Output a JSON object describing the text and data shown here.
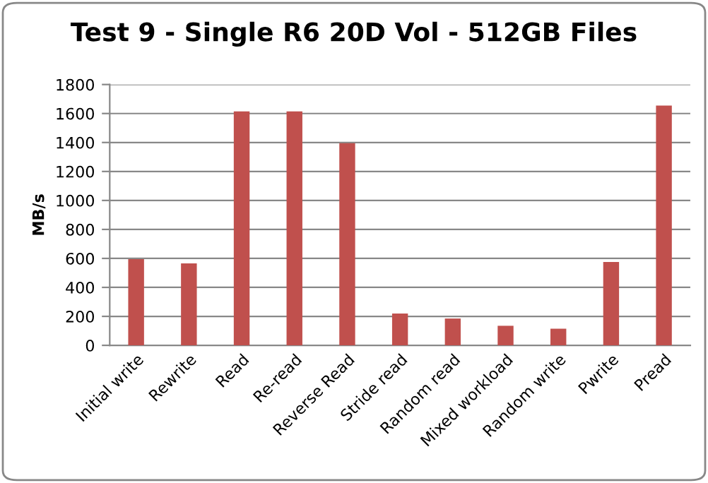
{
  "chart_data": {
    "type": "bar",
    "title": "Test 9 - Single R6 20D Vol - 512GB Files",
    "ylabel": "MB/s",
    "categories": [
      "Initial write",
      "Rewrite",
      "Read",
      "Re-read",
      "Reverse Read",
      "Stride read",
      "Random read",
      "Mixed workload",
      "Random write",
      "Pwrite",
      "Pread"
    ],
    "values": [
      595,
      565,
      1615,
      1615,
      1395,
      220,
      185,
      135,
      115,
      575,
      1655
    ],
    "color": "#c0504d",
    "ylim": [
      0,
      1800
    ],
    "yticks": [
      0,
      200,
      400,
      600,
      800,
      1000,
      1200,
      1400,
      1600,
      1800
    ],
    "grid": "y"
  }
}
